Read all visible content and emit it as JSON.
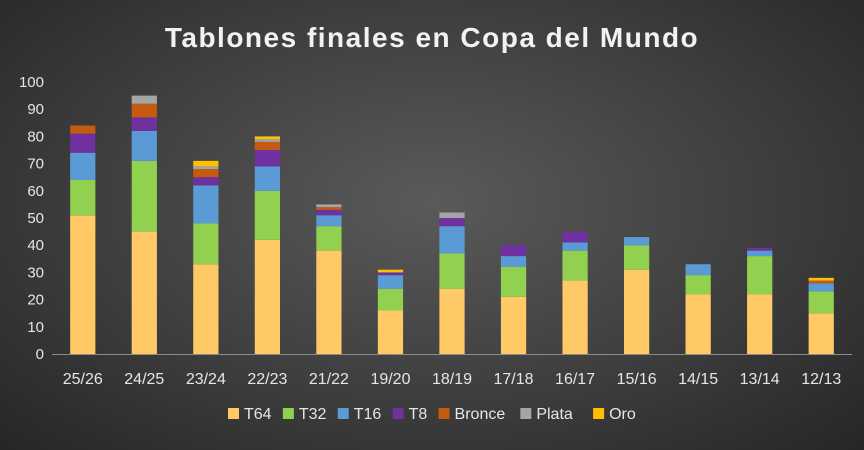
{
  "chart_data": {
    "type": "bar",
    "stacked": true,
    "title": "Tablones finales en Copa del Mundo",
    "xlabel": "",
    "ylabel": "",
    "ylim": [
      0,
      100
    ],
    "ytick_step": 10,
    "grid": false,
    "legend_position": "bottom",
    "categories": [
      "25/26",
      "24/25",
      "23/24",
      "22/23",
      "21/22",
      "19/20",
      "18/19",
      "17/18",
      "16/17",
      "15/16",
      "14/15",
      "13/14",
      "12/13"
    ],
    "series": [
      {
        "name": "T64",
        "color": "#ffc966",
        "values": [
          51,
          45,
          33,
          42,
          38,
          16,
          24,
          21,
          27,
          31,
          22,
          22,
          15
        ]
      },
      {
        "name": "T32",
        "color": "#92d050",
        "values": [
          13,
          26,
          15,
          18,
          9,
          8,
          13,
          11,
          11,
          9,
          7,
          14,
          8
        ]
      },
      {
        "name": "T16",
        "color": "#5b9bd5",
        "values": [
          10,
          11,
          14,
          9,
          4,
          5,
          10,
          4,
          3,
          3,
          4,
          2,
          3
        ]
      },
      {
        "name": "T8",
        "color": "#7030a0",
        "values": [
          7,
          5,
          3,
          6,
          2,
          1,
          3,
          4,
          4,
          0,
          0,
          1,
          0
        ]
      },
      {
        "name": "Bronce",
        "color": "#c55a11",
        "values": [
          3,
          5,
          3,
          3,
          1,
          0,
          0,
          0,
          0,
          0,
          0,
          0,
          1
        ]
      },
      {
        "name": "Plata",
        "color": "#a5a5a5",
        "values": [
          0,
          3,
          1,
          1,
          1,
          0,
          2,
          0,
          0,
          0,
          0,
          0,
          0
        ]
      },
      {
        "name": "Oro",
        "color": "#ffc000",
        "values": [
          0,
          0,
          2,
          1,
          0,
          1,
          0,
          0,
          0,
          0,
          0,
          0,
          1
        ]
      }
    ]
  }
}
